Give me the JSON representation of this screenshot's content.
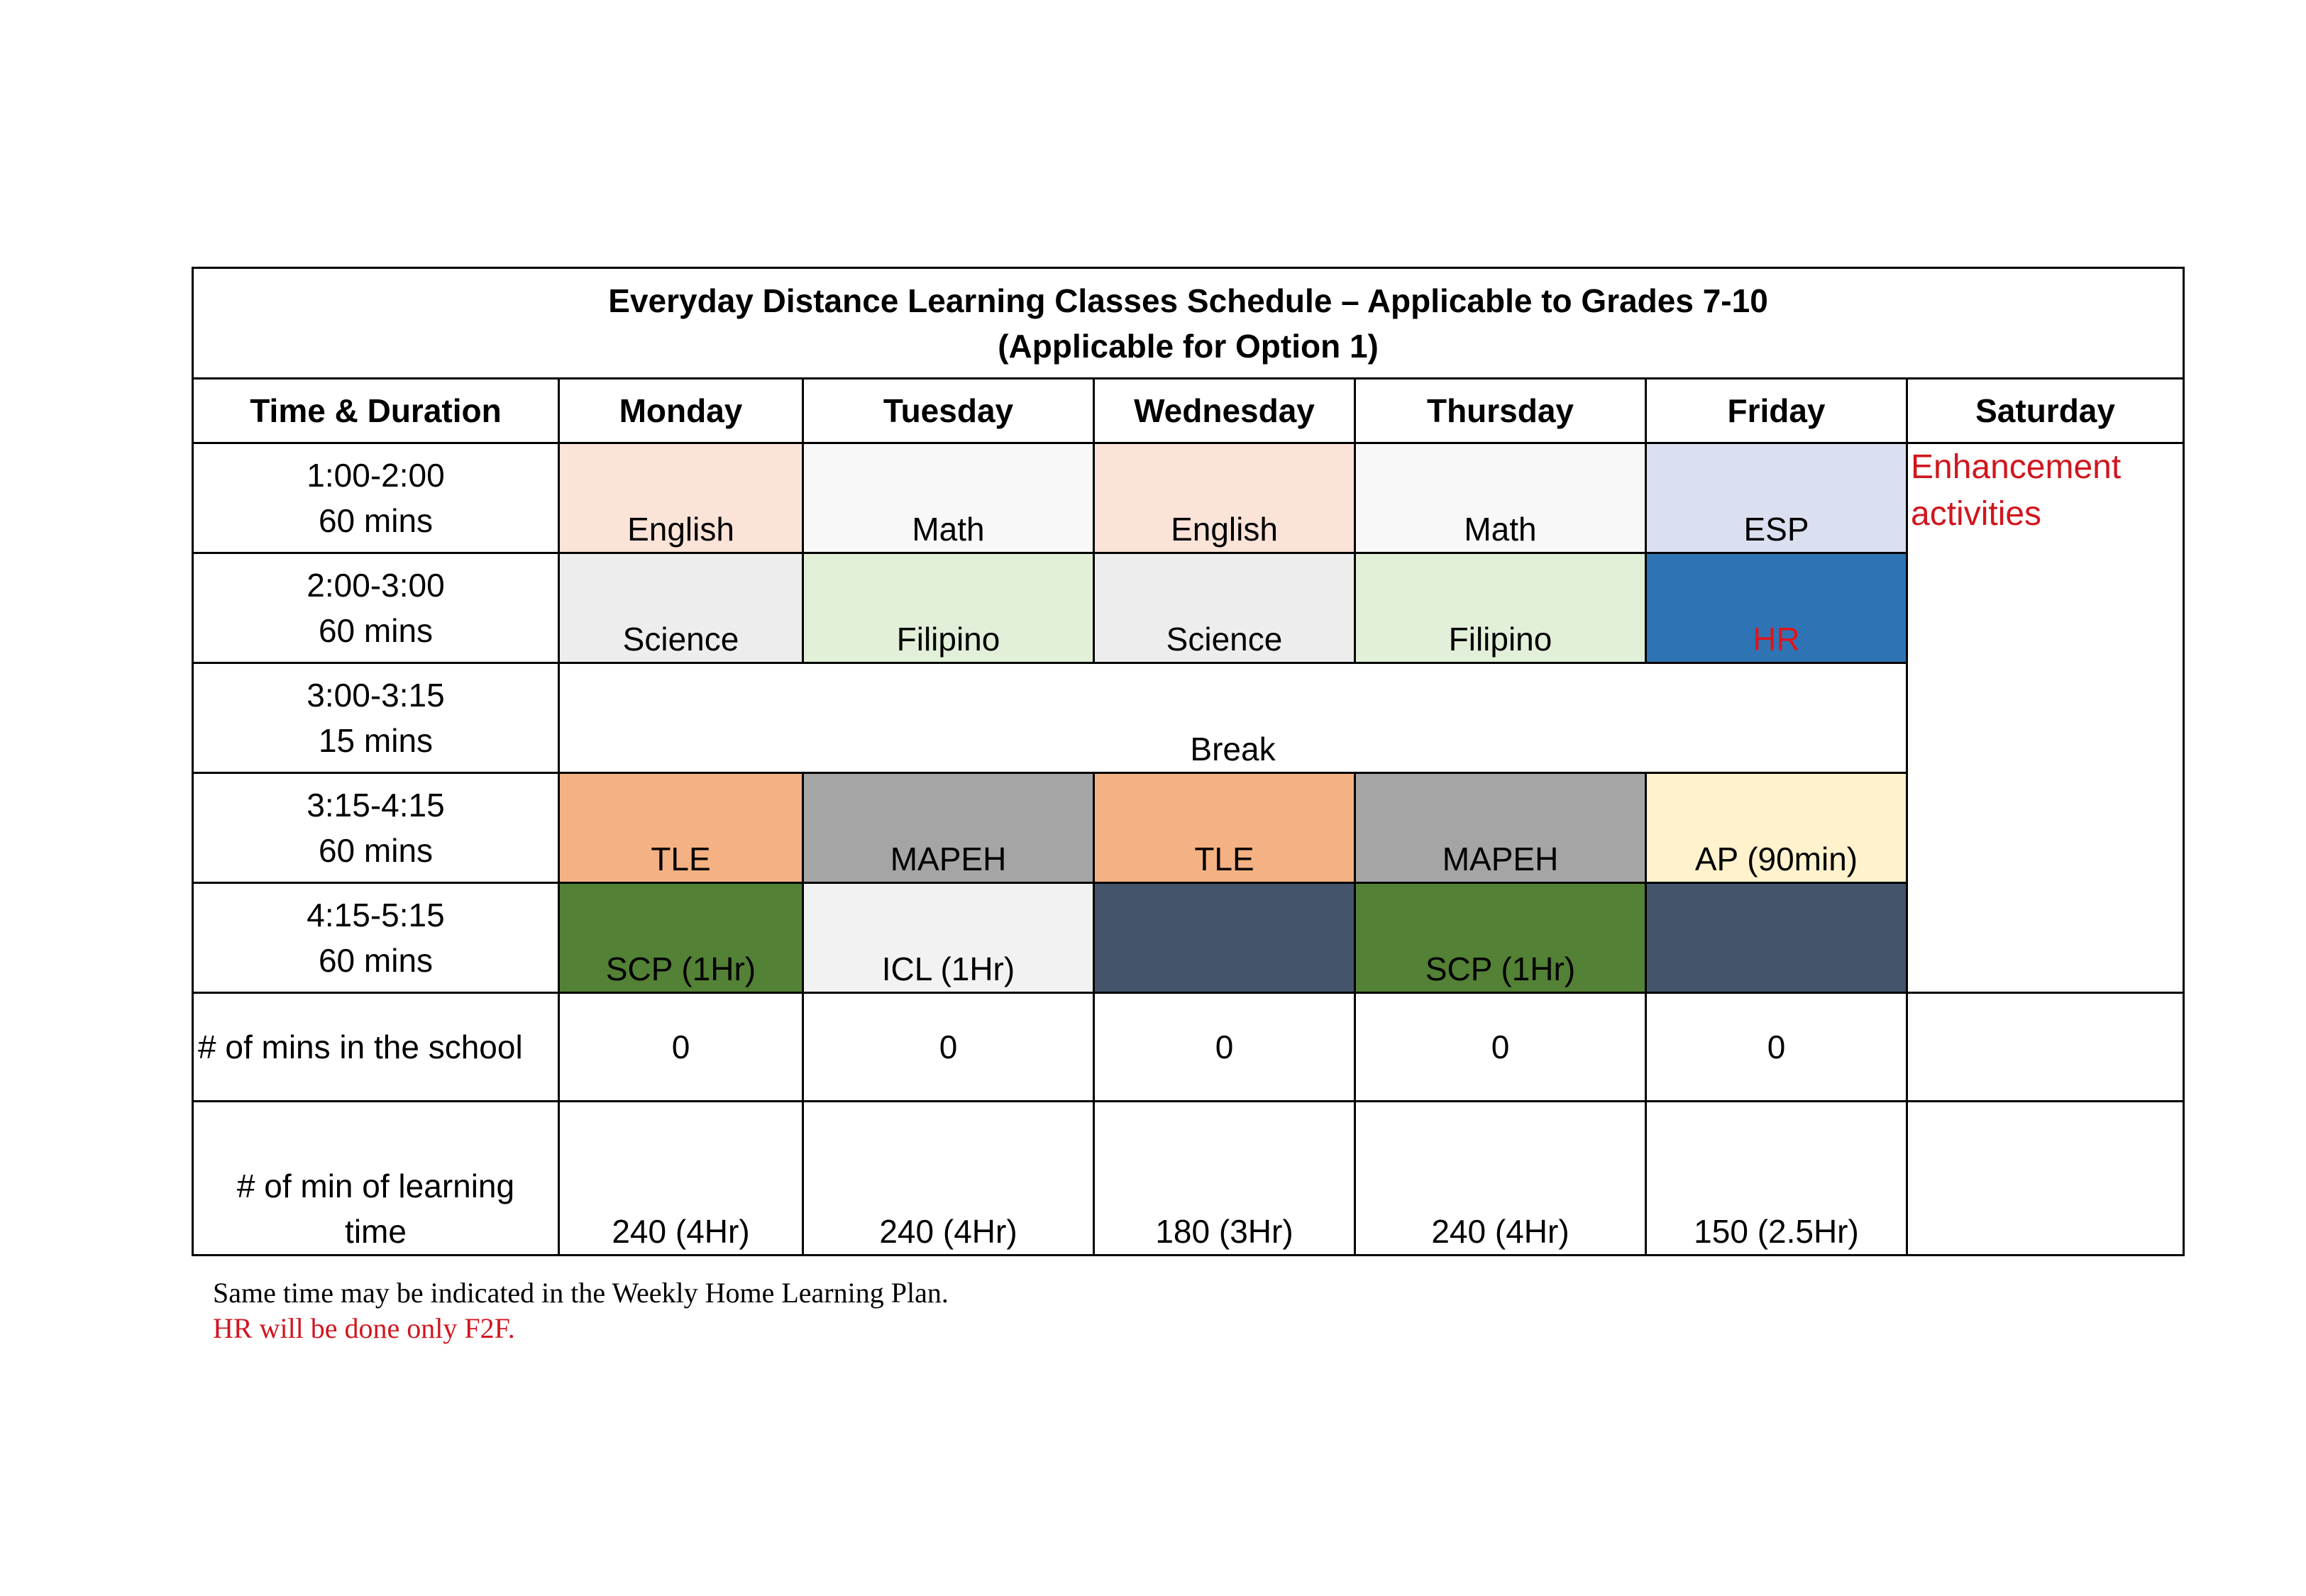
{
  "title": {
    "line1": "Everyday Distance Learning Classes Schedule – Applicable to Grades 7-10",
    "line2": "(Applicable for Option 1)"
  },
  "headers": [
    "Time & Duration",
    "Monday",
    "Tuesday",
    "Wednesday",
    "Thursday",
    "Friday",
    "Saturday"
  ],
  "slots": [
    {
      "time": "1:00-2:00",
      "duration": "60 mins",
      "cells": [
        {
          "text": "English",
          "bg": "#fbe3d8"
        },
        {
          "text": "Math",
          "bg": "#f8f8f8"
        },
        {
          "text": "English",
          "bg": "#fbe3d8"
        },
        {
          "text": "Math",
          "bg": "#f8f8f8"
        },
        {
          "text": "ESP",
          "bg": "#dbe0f1"
        }
      ]
    },
    {
      "time": "2:00-3:00",
      "duration": "60 mins",
      "cells": [
        {
          "text": "Science",
          "bg": "#ededed"
        },
        {
          "text": "Filipino",
          "bg": "#e2efd9"
        },
        {
          "text": "Science",
          "bg": "#ededed"
        },
        {
          "text": "Filipino",
          "bg": "#e2efd9"
        },
        {
          "text": "HR",
          "bg": "#2e74b5",
          "color": "#e0151c"
        }
      ]
    },
    {
      "time": "3:00-3:15",
      "duration": "15 mins",
      "break": "Break"
    },
    {
      "time": "3:15-4:15",
      "duration": "60 mins",
      "cells": [
        {
          "text": "TLE",
          "bg": "#f4b183"
        },
        {
          "text": "MAPEH",
          "bg": "#a5a5a5"
        },
        {
          "text": "TLE",
          "bg": "#f4b183"
        },
        {
          "text": "MAPEH",
          "bg": "#a5a5a5"
        },
        {
          "text": "AP (90min)",
          "bg": "#fff2cc"
        }
      ]
    },
    {
      "time": "4:15-5:15",
      "duration": "60 mins",
      "cells": [
        {
          "text": "SCP (1Hr)",
          "bg": "#538135"
        },
        {
          "text": "ICL (1Hr)",
          "bg": "#f2f2f2"
        },
        {
          "text": "",
          "bg": "#44546a"
        },
        {
          "text": "SCP (1Hr)",
          "bg": "#538135"
        },
        {
          "text": "",
          "bg": "#44546a"
        }
      ]
    }
  ],
  "saturday": {
    "line1": "Enhancement",
    "line2": "activities",
    "color": "#d0161e"
  },
  "mins_in_school": {
    "label": "# of mins in the school",
    "values": [
      "0",
      "0",
      "0",
      "0",
      "0",
      ""
    ]
  },
  "learning_time": {
    "label_line1": "# of min of learning",
    "label_line2": "time",
    "values": [
      "240 (4Hr)",
      "240 (4Hr)",
      "180 (3Hr)",
      "240 (4Hr)",
      "150 (2.5Hr)",
      ""
    ]
  },
  "notes": {
    "line1": "Same time may be indicated in the Weekly Home Learning Plan.",
    "line2": "HR will be done only F2F."
  }
}
